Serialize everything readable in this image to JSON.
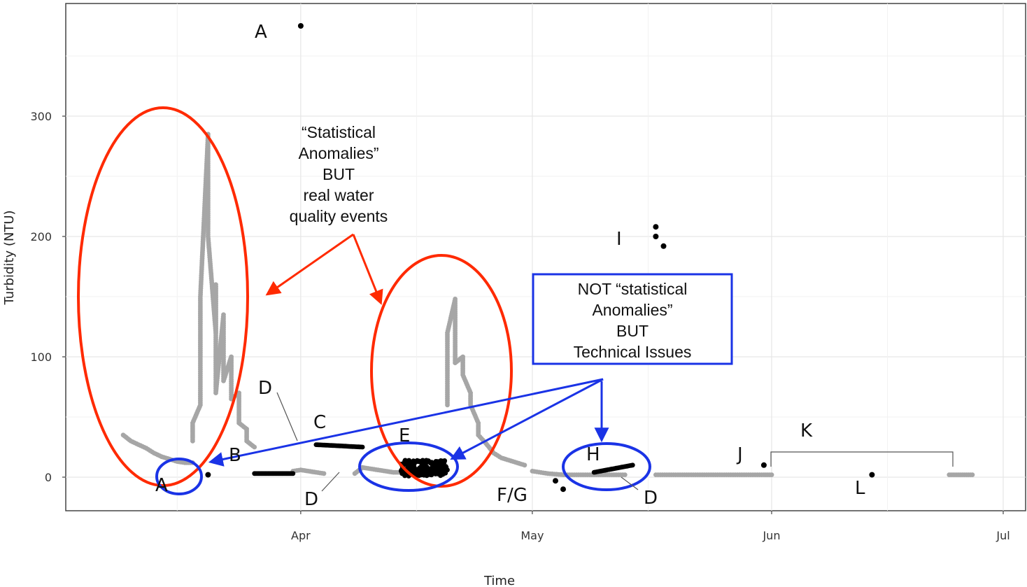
{
  "chart_data": {
    "type": "scatter",
    "title": "",
    "xlabel": "Time",
    "ylabel": "Turbidity (NTU)",
    "x_ticks": [
      "Apr",
      "May",
      "Jun",
      "Jul"
    ],
    "y_ticks": [
      0,
      100,
      200,
      300
    ],
    "xlim": [
      "2019-03-07",
      "2019-07-01"
    ],
    "ylim": [
      -29,
      380
    ],
    "grid": true,
    "colors": {
      "normal": "#a6a6a6",
      "anomaly": "#000000",
      "real_event": "#ff2a00",
      "technical_issue": "#1a33e6"
    },
    "series": [
      {
        "name": "",
        "color": "#a6a6a6",
        "segments": [
          {
            "x": [
              "2019-03-09",
              "2019-03-10",
              "2019-03-11",
              "2019-03-12",
              "2019-03-13",
              "2019-03-14",
              "2019-03-15",
              "2019-03-16",
              "2019-03-17",
              "2019-03-18"
            ],
            "y": [
              35,
              30,
              27,
              24,
              20,
              17,
              15,
              13,
              12,
              12
            ]
          },
          {
            "x": [
              "2019-03-18",
              "2019-03-18",
              "2019-03-19",
              "2019-03-19",
              "2019-03-19",
              "2019-03-20",
              "2019-03-20",
              "2019-03-20",
              "2019-03-21",
              "2019-03-21",
              "2019-03-21",
              "2019-03-21",
              "2019-03-22",
              "2019-03-22",
              "2019-03-22",
              "2019-03-23",
              "2019-03-23",
              "2019-03-23",
              "2019-03-24",
              "2019-03-24",
              "2019-03-24",
              "2019-03-25",
              "2019-03-25",
              "2019-03-26"
            ],
            "y": [
              30,
              45,
              60,
              100,
              150,
              285,
              240,
              200,
              120,
              160,
              90,
              70,
              135,
              110,
              80,
              100,
              85,
              65,
              70,
              55,
              45,
              40,
              30,
              25
            ]
          },
          {
            "x": [
              "2019-03-31",
              "2019-04-01",
              "2019-04-02",
              "2019-04-03",
              "2019-04-04"
            ],
            "y": [
              5,
              6,
              5,
              4,
              3
            ]
          },
          {
            "x": [
              "2019-04-08",
              "2019-04-09",
              "2019-04-10",
              "2019-04-11",
              "2019-04-12",
              "2019-04-13",
              "2019-04-14"
            ],
            "y": [
              3,
              8,
              7,
              6,
              5,
              4,
              4
            ]
          },
          {
            "x": [
              "2019-04-20",
              "2019-04-20",
              "2019-04-20",
              "2019-04-21",
              "2019-04-21",
              "2019-04-21",
              "2019-04-22",
              "2019-04-22",
              "2019-04-23",
              "2019-04-23",
              "2019-04-24",
              "2019-04-24",
              "2019-04-25",
              "2019-04-26",
              "2019-04-27",
              "2019-04-28",
              "2019-04-29",
              "2019-04-30"
            ],
            "y": [
              60,
              90,
              120,
              148,
              110,
              95,
              100,
              85,
              70,
              60,
              45,
              35,
              28,
              20,
              16,
              14,
              12,
              10
            ]
          },
          {
            "x": [
              "2019-05-01",
              "2019-05-03",
              "2019-05-05",
              "2019-05-07",
              "2019-05-09",
              "2019-05-11",
              "2019-05-13"
            ],
            "y": [
              5,
              3,
              2,
              2,
              2,
              2,
              2
            ]
          },
          {
            "x": [
              "2019-05-17",
              "2019-05-19",
              "2019-05-21",
              "2019-05-23",
              "2019-05-25",
              "2019-05-27",
              "2019-05-29",
              "2019-05-31",
              "2019-06-01"
            ],
            "y": [
              2,
              2,
              2,
              2,
              2,
              2,
              2,
              2,
              2
            ]
          },
          {
            "x": [
              "2019-06-24",
              "2019-06-25",
              "2019-06-26",
              "2019-06-27"
            ],
            "y": [
              2,
              2,
              2,
              2
            ]
          }
        ]
      },
      {
        "name": "",
        "color": "#000000",
        "points": {
          "x": [
            "2019-04-01",
            "2019-03-20",
            "2019-05-17",
            "2019-05-18",
            "2019-05-17",
            "2019-05-04",
            "2019-05-05",
            "2019-05-31",
            "2019-06-14"
          ],
          "y": [
            375,
            2,
            208,
            192,
            200,
            -3,
            -10,
            10,
            2
          ]
        },
        "segments": [
          {
            "x": [
              "2019-03-26",
              "2019-03-31"
            ],
            "y": [
              3,
              3
            ]
          },
          {
            "x": [
              "2019-04-03",
              "2019-04-09"
            ],
            "y": [
              27,
              25
            ]
          },
          {
            "x": [
              "2019-04-14",
              "2019-04-20"
            ],
            "y": [
              5,
              6
            ]
          },
          {
            "x": [
              "2019-05-09",
              "2019-05-14"
            ],
            "y": [
              4,
              10
            ]
          }
        ]
      }
    ],
    "annotations": {
      "A": "A",
      "B": "B",
      "C": "C",
      "D": "D",
      "E": "E",
      "FG": "F/G",
      "H": "H",
      "I": "I",
      "J": "J",
      "K": "K",
      "L": "L"
    },
    "callouts": {
      "real_event": [
        "“Statistical",
        "Anomalies”",
        "BUT",
        "real water",
        "quality events"
      ],
      "technical_issue": [
        "NOT “statistical",
        "Anomalies”",
        "BUT",
        "Technical Issues"
      ]
    }
  }
}
